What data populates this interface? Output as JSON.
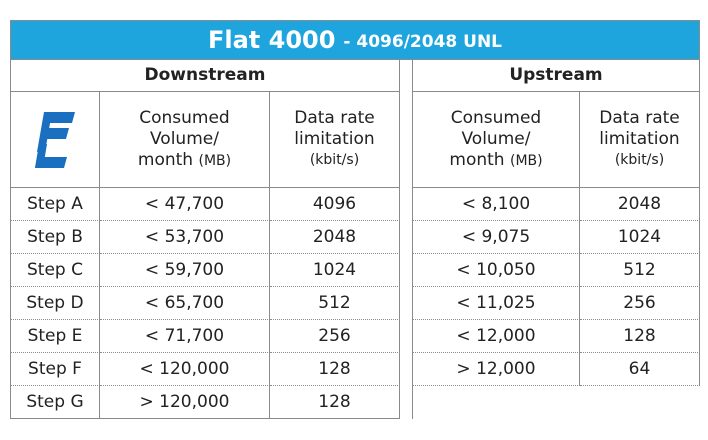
{
  "title": {
    "main": "Flat 4000",
    "sub": "- 4096/2048 UNL"
  },
  "sections": {
    "downstream": "Downstream",
    "upstream": "Upstream"
  },
  "col_headers": {
    "volume": {
      "lines": [
        "Consumed",
        "Volume/",
        "month"
      ],
      "unit": "(MB)"
    },
    "rate": {
      "lines": [
        "Data rate",
        "limitation"
      ],
      "unit": "(kbit/s)"
    }
  },
  "rows": [
    {
      "step": "Step A",
      "down": [
        "< 47,700",
        "4096"
      ],
      "up": [
        "< 8,100",
        "2048"
      ]
    },
    {
      "step": "Step B",
      "down": [
        "< 53,700",
        "2048"
      ],
      "up": [
        "< 9,075",
        "1024"
      ]
    },
    {
      "step": "Step C",
      "down": [
        "< 59,700",
        "1024"
      ],
      "up": [
        "< 10,050",
        "512"
      ]
    },
    {
      "step": "Step D",
      "down": [
        "< 65,700",
        "512"
      ],
      "up": [
        "< 11,025",
        "256"
      ]
    },
    {
      "step": "Step E",
      "down": [
        "< 71,700",
        "256"
      ],
      "up": [
        "< 12,000",
        "128"
      ]
    },
    {
      "step": "Step F",
      "down": [
        "< 120,000",
        "128"
      ],
      "up": [
        "> 12,000",
        "64"
      ]
    },
    {
      "step": "Step G",
      "down": [
        "> 120,000",
        "128"
      ]
    }
  ]
}
